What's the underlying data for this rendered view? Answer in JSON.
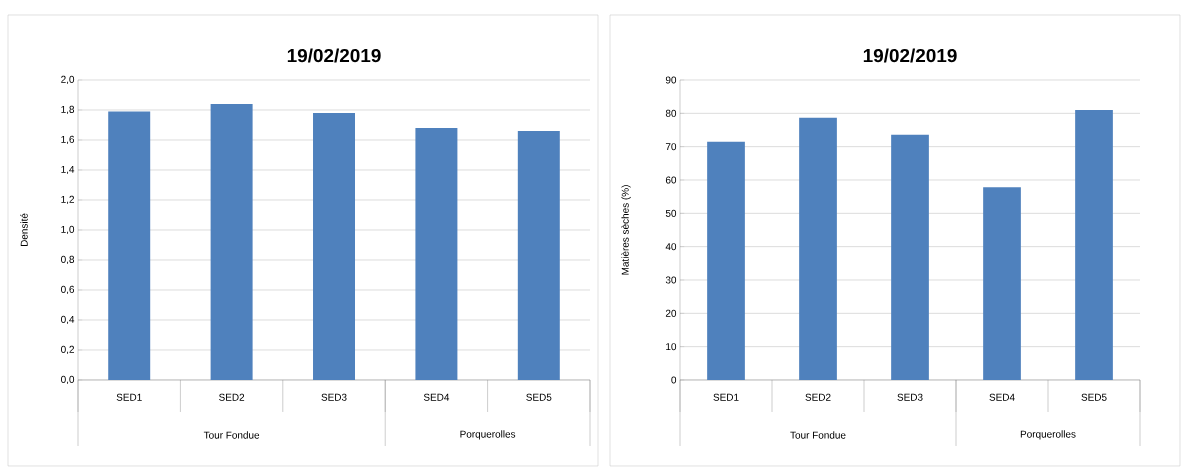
{
  "chart_data": [
    {
      "type": "bar",
      "title": "19/02/2019",
      "ylabel": "Densité",
      "categories": [
        "SED1",
        "SED2",
        "SED3",
        "SED4",
        "SED5"
      ],
      "values": [
        1.79,
        1.84,
        1.78,
        1.68,
        1.66
      ],
      "color": "#4f81bd",
      "ylim": [
        0,
        2
      ],
      "yticks": [
        {
          "value": 0,
          "label": "0,0"
        },
        {
          "value": 0.2,
          "label": "0,2"
        },
        {
          "value": 0.4,
          "label": "0,4"
        },
        {
          "value": 0.6,
          "label": "0,6"
        },
        {
          "value": 0.8,
          "label": "0,8"
        },
        {
          "value": 1.0,
          "label": "1,0"
        },
        {
          "value": 1.2,
          "label": "1,2"
        },
        {
          "value": 1.4,
          "label": "1,4"
        },
        {
          "value": 1.6,
          "label": "1,6"
        },
        {
          "value": 1.8,
          "label": "1,8"
        },
        {
          "value": 2.0,
          "label": "2,0"
        }
      ],
      "grid": "y",
      "annotations": [
        "Tour Fondue",
        "Porquerolles"
      ]
    },
    {
      "type": "bar",
      "title": "19/02/2019",
      "ylabel": "Matières sèches (%)",
      "categories": [
        "SED1",
        "SED2",
        "SED3",
        "SED4",
        "SED5"
      ],
      "values": [
        71.5,
        78.7,
        73.6,
        57.8,
        81
      ],
      "color": "#4f81bd",
      "ylim": [
        0,
        90
      ],
      "yticks": [
        0,
        10,
        20,
        30,
        40,
        50,
        60,
        70,
        80,
        90
      ],
      "grid": "y",
      "annotations": [
        "Tour Fondue",
        "Porquerolles"
      ]
    }
  ]
}
